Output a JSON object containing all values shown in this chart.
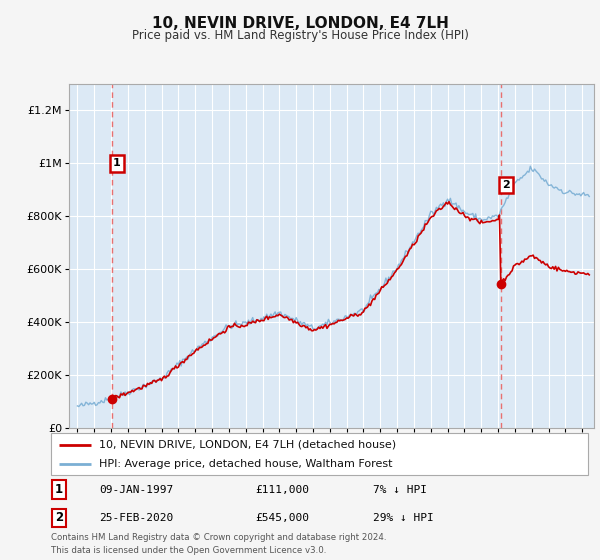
{
  "title": "10, NEVIN DRIVE, LONDON, E4 7LH",
  "subtitle": "Price paid vs. HM Land Registry's House Price Index (HPI)",
  "ylim": [
    0,
    1300000
  ],
  "xlim_start": 1994.5,
  "xlim_end": 2025.7,
  "sale1_date": 1997.03,
  "sale1_price": 111000,
  "sale2_date": 2020.15,
  "sale2_price": 545000,
  "legend_line1": "10, NEVIN DRIVE, LONDON, E4 7LH (detached house)",
  "legend_line2": "HPI: Average price, detached house, Waltham Forest",
  "footer": "Contains HM Land Registry data © Crown copyright and database right 2024.\nThis data is licensed under the Open Government Licence v3.0.",
  "line_color_sale": "#cc0000",
  "line_color_hpi": "#7bafd4",
  "plot_bg": "#dce9f5",
  "grid_color": "#ffffff",
  "dashed_color": "#e87070"
}
